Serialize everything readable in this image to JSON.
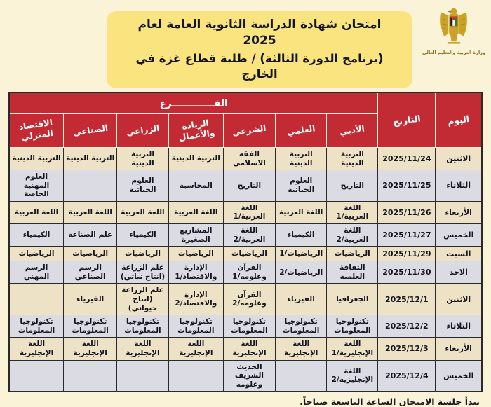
{
  "colors": {
    "page-bg": "#faf3d7",
    "banner-yellow": "#f9e47f",
    "header-red": "#c22b33",
    "row-beige": "#eee2c6",
    "row-gray": "#dbdce3",
    "ink": "#15151f",
    "border-dark": "#2a2a2a",
    "gold": "#c9a227"
  },
  "header": {
    "title_line1": "امتحان شهادة الدراسة الثانوية العامة لعام 2025",
    "title_line2": "(برنامج الدورة الثالثة) / طلبة قطاع غزة في الخارج",
    "ministry_label": "وزارة التربية والتعليم العالي"
  },
  "table": {
    "day_header": "اليوم",
    "date_header": "التاريخ",
    "branch_group_header": "الفـــــــــــــرع",
    "branches": [
      "الأدبي",
      "العلمي",
      "الشرعي",
      "الريادة والأعمال",
      "الزراعي",
      "الصناعي",
      "الاقتصاد المنزلي"
    ],
    "rows": [
      {
        "day": "الاثنين",
        "date": "2025/11/24",
        "subjects": [
          "التربية الدينية",
          "التربية الدينية",
          "الفقه الاسلامي",
          "التربية الدينية",
          "التربية الدينية",
          "التربية الدينية",
          "التربية الدينية"
        ]
      },
      {
        "day": "الثلاثاء",
        "date": "2025/11/25",
        "subjects": [
          "التاريخ",
          "العلوم الحياتية",
          "التاريخ",
          "المحاسبة",
          "العلوم الحياتية",
          "",
          "العلوم المهنية الخاصة"
        ]
      },
      {
        "day": "الأربعاء",
        "date": "2025/11/26",
        "subjects": [
          "اللغة العربية/1",
          "اللغة العربية",
          "اللغة العربية/1",
          "اللغة العربية",
          "اللغة العربية",
          "اللغة العربية",
          "اللغة العربية"
        ]
      },
      {
        "day": "الخميس",
        "date": "2025/11/27",
        "subjects": [
          "اللغة العربية/2",
          "الكيمياء",
          "اللغة العربية/2",
          "المشاريع الصغيرة",
          "الكيمياء",
          "علم الصناعة",
          "الكيمياء"
        ]
      },
      {
        "day": "السبت",
        "date": "2025/11/29",
        "subjects": [
          "الرياضيات",
          "الرياضيات/1",
          "الرياضيات",
          "الرياضيات",
          "الرياضيات",
          "الرياضيات",
          "الرياضيات"
        ]
      },
      {
        "day": "الاحد",
        "date": "2025/11/30",
        "subjects": [
          "الثقافة العلمية",
          "الرياضيات/2",
          "القرآن وعلومه/1",
          "الإدارة والاقتصاد/1",
          "علم الزراعة (انتاج نباتي)",
          "الرسم الصناعي",
          "الرسم المهني"
        ]
      },
      {
        "day": "الاثنين",
        "date": "2025/12/1",
        "subjects": [
          "الجغرافيا",
          "الفيزياء",
          "القرآن وعلومه/2",
          "الإدارة والاقتصاد/2",
          "علم الزراعة (انتاج حيواني)",
          "الفيزياء",
          ""
        ]
      },
      {
        "day": "الثلاثاء",
        "date": "2025/12/2",
        "subjects": [
          "تكنولوجيا المعلومات",
          "تكنولوجيا المعلومات",
          "تكنولوجيا المعلومات",
          "تكنولوجيا المعلومات",
          "تكنولوجيا المعلومات",
          "تكنولوجيا المعلومات",
          "تكنولوجيا المعلومات"
        ]
      },
      {
        "day": "الأربعاء",
        "date": "2025/12/3",
        "subjects": [
          "اللغة الإنجليزية/1",
          "اللغة الإنجليزية",
          "اللغة الإنجليزية",
          "اللغة الإنجليزية",
          "اللغة الإنجليزية",
          "اللغة الإنجليزية",
          "اللغة الإنجليزية"
        ]
      },
      {
        "day": "الخميس",
        "date": "2025/12/4",
        "subjects": [
          "اللغة الإنجليزية/2",
          "",
          "الحديث الشريف وعلومه",
          "",
          "",
          "",
          ""
        ]
      }
    ]
  },
  "footer": {
    "note": "تبدأ جلسة الامتحان الساعة التاسعة صباحاً."
  }
}
